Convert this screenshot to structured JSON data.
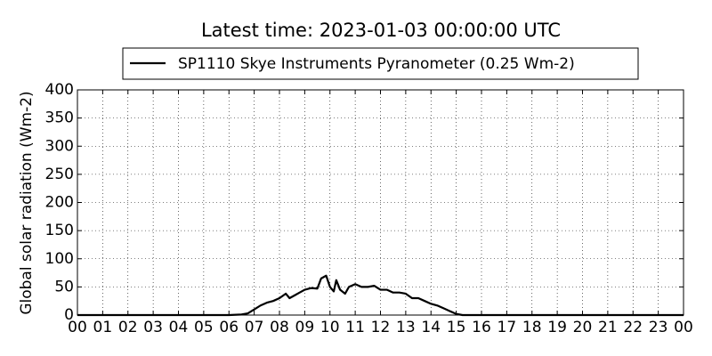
{
  "chart_data": {
    "type": "line",
    "title": "Latest time: 2023-01-03 00:00:00 UTC",
    "y_label": "Global solar radiation (Wm-2)",
    "x": [
      0,
      6.0,
      6.5,
      6.75,
      7.0,
      7.25,
      7.5,
      7.75,
      8.0,
      8.25,
      8.4,
      8.6,
      8.8,
      9.0,
      9.25,
      9.5,
      9.65,
      9.85,
      10.0,
      10.15,
      10.25,
      10.4,
      10.6,
      10.75,
      11.0,
      11.25,
      11.5,
      11.75,
      12.0,
      12.25,
      12.5,
      12.75,
      13.0,
      13.25,
      13.5,
      13.75,
      14.0,
      14.25,
      14.5,
      14.75,
      15.0,
      15.25,
      24
    ],
    "series": [
      {
        "name": "SP1110 Skye Instruments Pyranometer (0.25 Wm-2)",
        "color": "#000000",
        "values": [
          0,
          0,
          1,
          3,
          10,
          17,
          22,
          25,
          30,
          38,
          30,
          35,
          40,
          45,
          48,
          47,
          65,
          70,
          50,
          42,
          62,
          45,
          38,
          50,
          55,
          50,
          50,
          52,
          45,
          45,
          40,
          40,
          38,
          30,
          30,
          25,
          20,
          17,
          12,
          7,
          2,
          0,
          0
        ]
      }
    ],
    "xlim": [
      0,
      24
    ],
    "xticks": [
      {
        "value": 0,
        "label": "00"
      },
      {
        "value": 1,
        "label": "01"
      },
      {
        "value": 2,
        "label": "02"
      },
      {
        "value": 3,
        "label": "03"
      },
      {
        "value": 4,
        "label": "04"
      },
      {
        "value": 5,
        "label": "05"
      },
      {
        "value": 6,
        "label": "06"
      },
      {
        "value": 7,
        "label": "07"
      },
      {
        "value": 8,
        "label": "08"
      },
      {
        "value": 9,
        "label": "09"
      },
      10,
      11,
      12,
      13,
      14,
      15,
      16,
      17,
      18,
      19,
      20,
      21,
      22,
      23,
      {
        "value": 24,
        "label": "00"
      }
    ],
    "ylim": [
      0,
      400
    ],
    "yticks": [
      0,
      50,
      100,
      150,
      200,
      250,
      300,
      350,
      400
    ],
    "grid": true,
    "legend": "top"
  }
}
